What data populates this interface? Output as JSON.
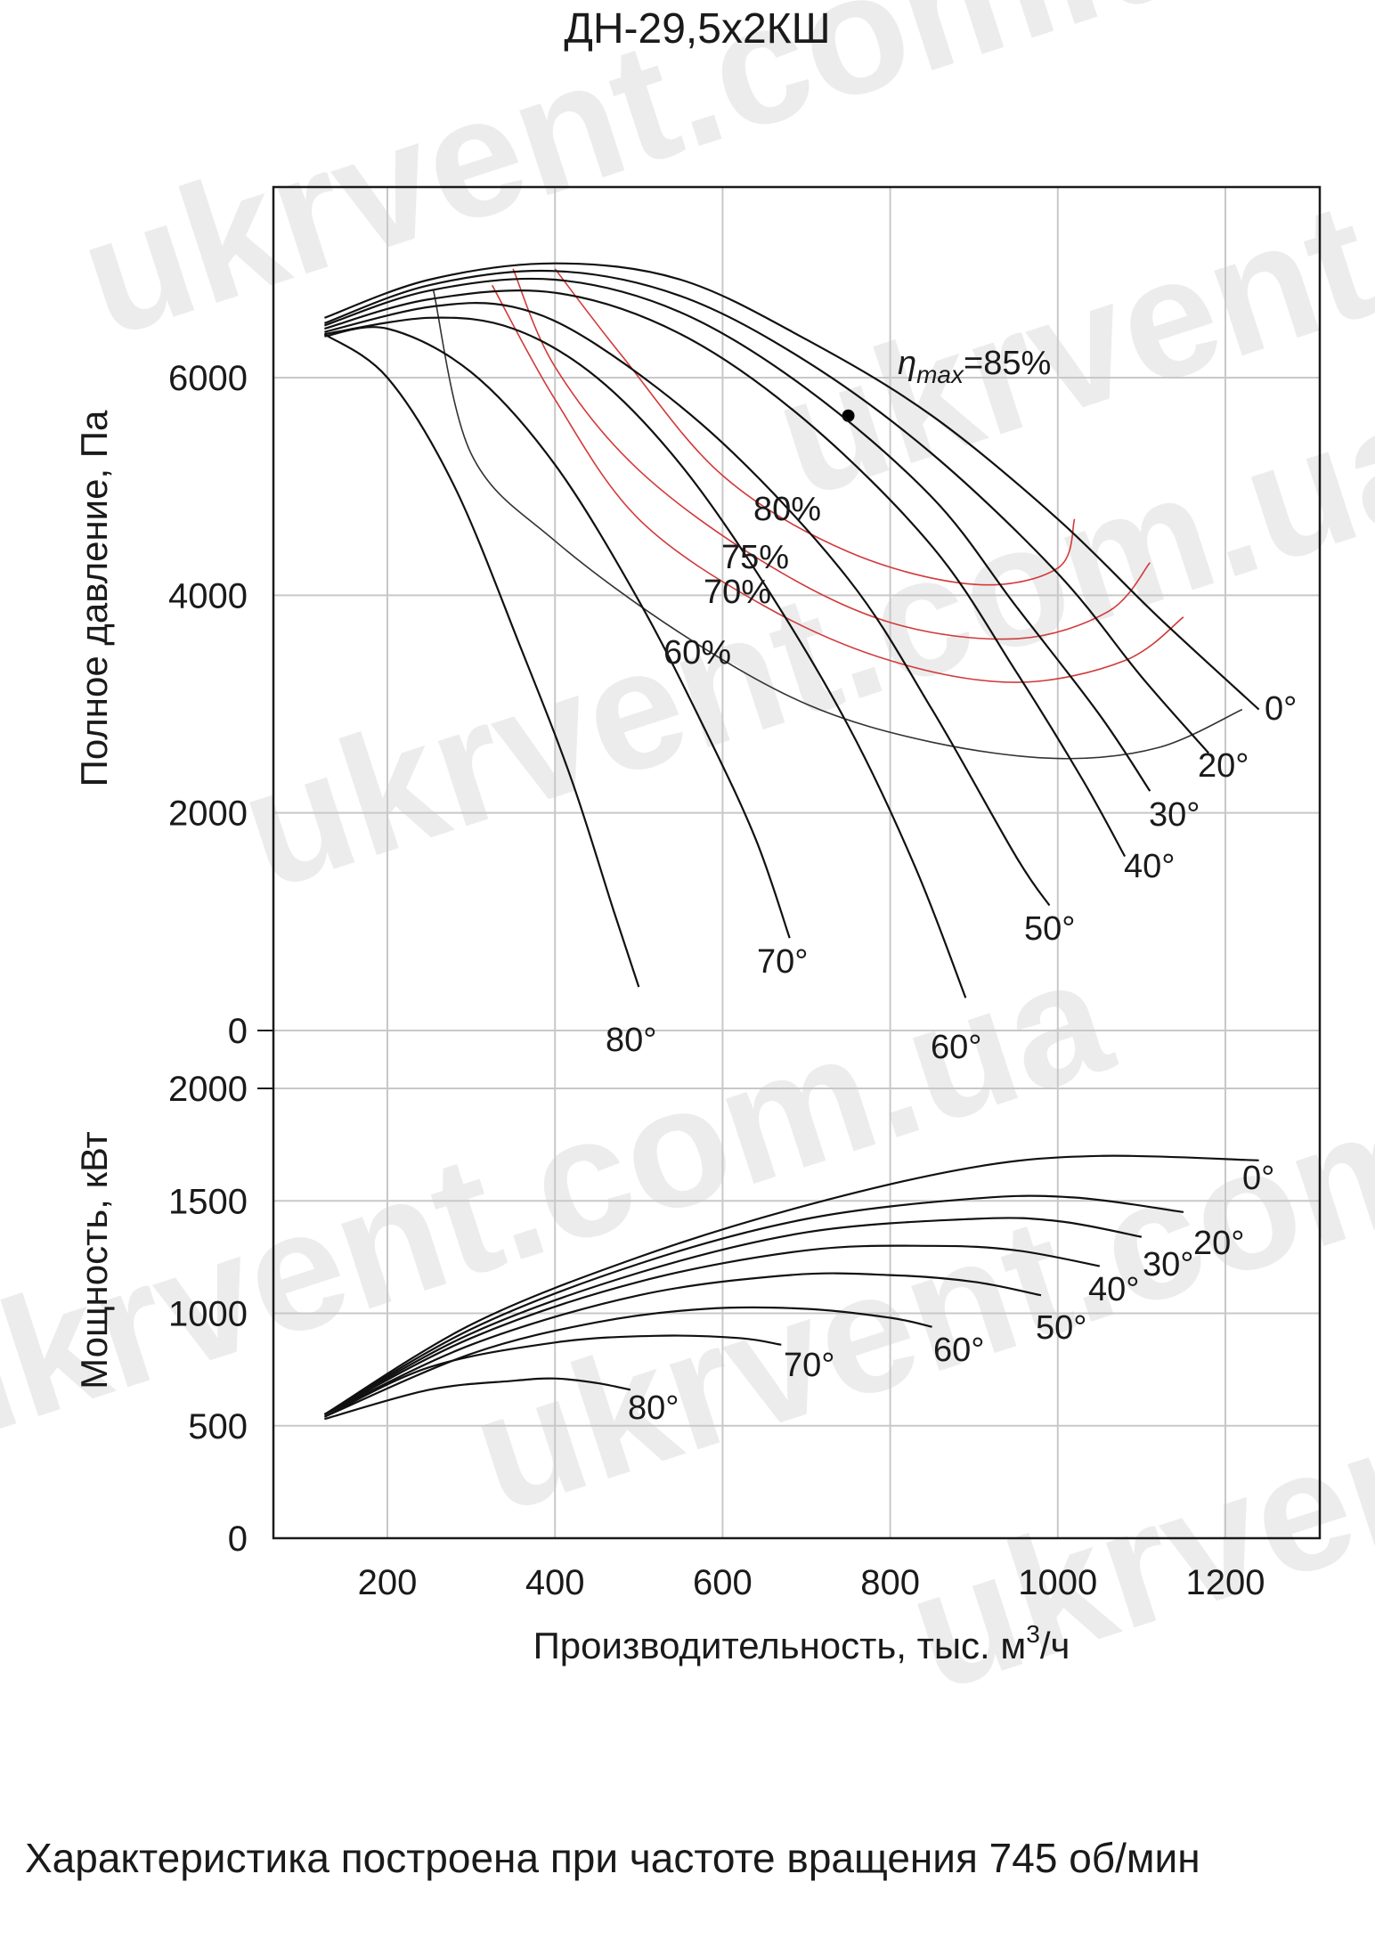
{
  "chart_data": {
    "type": "line",
    "title": "ДН-29,5х2КШ",
    "xlabel": "Производительность, тыс. м³/ч",
    "xlabel_main": "Производительность, тыс. м",
    "xlabel_sup": "3",
    "xlabel_tail": "/ч",
    "xlim": [
      75,
      1300
    ],
    "xticks": [
      200,
      400,
      600,
      800,
      1000,
      1200
    ],
    "watermark": "ukrvent.com.ua",
    "pressure": {
      "ylabel": "Полное давление, Па",
      "ylim": [
        0,
        7700
      ],
      "yticks": [
        0,
        2000,
        4000,
        6000
      ],
      "series": [
        {
          "name": "0°",
          "x": [
            125,
            250,
            400,
            550,
            700,
            850,
            1000,
            1120,
            1240
          ],
          "y": [
            6550,
            6900,
            7050,
            6900,
            6350,
            5650,
            4700,
            3800,
            2950
          ]
        },
        {
          "name": "20°",
          "x": [
            125,
            250,
            400,
            550,
            700,
            850,
            1000,
            1100,
            1180
          ],
          "y": [
            6500,
            6850,
            6980,
            6750,
            6150,
            5300,
            4200,
            3250,
            2550
          ]
        },
        {
          "name": "30°",
          "x": [
            125,
            250,
            400,
            550,
            700,
            850,
            950,
            1050,
            1110
          ],
          "y": [
            6480,
            6800,
            6900,
            6600,
            5900,
            4900,
            3900,
            2900,
            2200
          ]
        },
        {
          "name": "40°",
          "x": [
            125,
            250,
            400,
            550,
            700,
            850,
            950,
            1030,
            1080
          ],
          "y": [
            6450,
            6720,
            6780,
            6400,
            5600,
            4450,
            3300,
            2300,
            1600
          ]
        },
        {
          "name": "50°",
          "x": [
            125,
            250,
            350,
            450,
            600,
            750,
            850,
            950,
            990
          ],
          "y": [
            6420,
            6650,
            6650,
            6300,
            5400,
            4150,
            2950,
            1600,
            1150
          ]
        },
        {
          "name": "60°",
          "x": [
            125,
            250,
            350,
            450,
            550,
            650,
            750,
            830,
            890
          ],
          "y": [
            6400,
            6550,
            6450,
            6000,
            5200,
            4100,
            2800,
            1500,
            300
          ]
        },
        {
          "name": "70°",
          "x": [
            125,
            200,
            300,
            400,
            500,
            580,
            640,
            680
          ],
          "y": [
            6380,
            6450,
            6050,
            5200,
            3950,
            2750,
            1750,
            850
          ]
        },
        {
          "name": "80°",
          "x": [
            125,
            200,
            280,
            360,
            420,
            470,
            500
          ],
          "y": [
            6400,
            6000,
            5000,
            3500,
            2300,
            1100,
            400
          ]
        }
      ],
      "efficiency": [
        {
          "name": "60%",
          "x": [
            255,
            300,
            400,
            550,
            700,
            850,
            1000,
            1120,
            1220
          ],
          "y": [
            6800,
            5300,
            4500,
            3650,
            3000,
            2650,
            2500,
            2600,
            2950
          ]
        },
        {
          "name": "70%",
          "x": [
            325,
            400,
            500,
            650,
            800,
            950,
            1080,
            1150
          ],
          "y": [
            6850,
            5800,
            4700,
            3900,
            3400,
            3200,
            3400,
            3800
          ]
        },
        {
          "name": "75%",
          "x": [
            350,
            400,
            500,
            650,
            800,
            950,
            1060,
            1110
          ],
          "y": [
            7000,
            6100,
            5150,
            4300,
            3750,
            3600,
            3850,
            4300
          ]
        },
        {
          "name": "80%",
          "x": [
            400,
            480,
            600,
            750,
            900,
            1000,
            1020
          ],
          "y": [
            7000,
            6200,
            5100,
            4400,
            4100,
            4250,
            4700
          ]
        },
        {
          "name": "ηmax=85%",
          "x": [
            750
          ],
          "y": [
            5650
          ]
        }
      ],
      "iso_labels": [
        "80%",
        "75%",
        "70%",
        "60%"
      ],
      "eta_prefix": "η",
      "eta_sub": "max",
      "eta_value": "=85%"
    },
    "power": {
      "ylabel": "Мощность, кВт",
      "ylim": [
        0,
        2000
      ],
      "yticks": [
        0,
        500,
        1000,
        1500,
        2000
      ],
      "series": [
        {
          "name": "0°",
          "x": [
            125,
            300,
            500,
            700,
            900,
            1050,
            1240
          ],
          "y": [
            550,
            950,
            1250,
            1480,
            1650,
            1700,
            1680
          ]
        },
        {
          "name": "20°",
          "x": [
            125,
            300,
            500,
            700,
            900,
            1020,
            1150
          ],
          "y": [
            550,
            930,
            1220,
            1420,
            1510,
            1515,
            1450
          ]
        },
        {
          "name": "30°",
          "x": [
            125,
            300,
            500,
            700,
            900,
            1000,
            1100
          ],
          "y": [
            550,
            910,
            1180,
            1360,
            1420,
            1410,
            1340
          ]
        },
        {
          "name": "40°",
          "x": [
            125,
            300,
            500,
            700,
            850,
            950,
            1050
          ],
          "y": [
            550,
            890,
            1140,
            1280,
            1300,
            1280,
            1210
          ]
        },
        {
          "name": "50°",
          "x": [
            125,
            300,
            500,
            680,
            800,
            900,
            980
          ],
          "y": [
            550,
            860,
            1080,
            1170,
            1170,
            1140,
            1080
          ]
        },
        {
          "name": "60°",
          "x": [
            125,
            300,
            450,
            580,
            700,
            800,
            850
          ],
          "y": [
            540,
            820,
            960,
            1020,
            1020,
            980,
            940
          ]
        },
        {
          "name": "70°",
          "x": [
            125,
            250,
            400,
            520,
            620,
            670
          ],
          "y": [
            540,
            760,
            870,
            900,
            890,
            860
          ]
        },
        {
          "name": "80°",
          "x": [
            125,
            250,
            350,
            400,
            450,
            490
          ],
          "y": [
            530,
            660,
            700,
            710,
            690,
            660
          ]
        }
      ]
    }
  },
  "caption": "Характеристика построена при частоте вращения 745 об/мин"
}
